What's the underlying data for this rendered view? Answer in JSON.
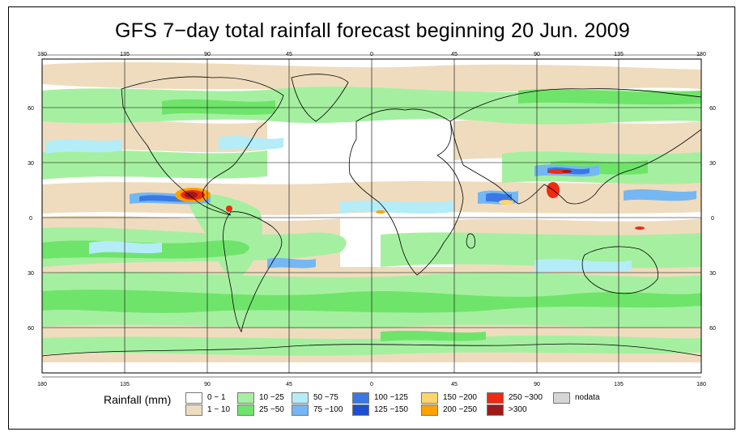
{
  "title": "GFS 7−day total rainfall forecast beginning 20 Jun. 2009",
  "map": {
    "lon_ticks": [
      "180",
      "135",
      "90",
      "45",
      "0",
      "45",
      "90",
      "135",
      "180"
    ],
    "lat_ticks": [
      "60",
      "30",
      "0",
      "30",
      "60"
    ]
  },
  "legend": {
    "title": "Rainfall (mm)",
    "items": [
      {
        "label": "0 − 1",
        "color": "#ffffff"
      },
      {
        "label": "1 − 10",
        "color": "#efdcbe"
      },
      {
        "label": "10 −25",
        "color": "#a5f0a0"
      },
      {
        "label": "25 −50",
        "color": "#6fe46a"
      },
      {
        "label": "50 −75",
        "color": "#b4ecf8"
      },
      {
        "label": "75 −100",
        "color": "#74b7f3"
      },
      {
        "label": "100 −125",
        "color": "#3a78e6"
      },
      {
        "label": "125 −150",
        "color": "#1f4fd0"
      },
      {
        "label": "150 −200",
        "color": "#ffd46a"
      },
      {
        "label": "200 −250",
        "color": "#ffa200"
      },
      {
        "label": "250 −300",
        "color": "#ee2a12"
      },
      {
        "label": ">300",
        "color": "#9e1a1a"
      },
      {
        "label": "nodata",
        "color": "#d6d6d6"
      }
    ]
  }
}
